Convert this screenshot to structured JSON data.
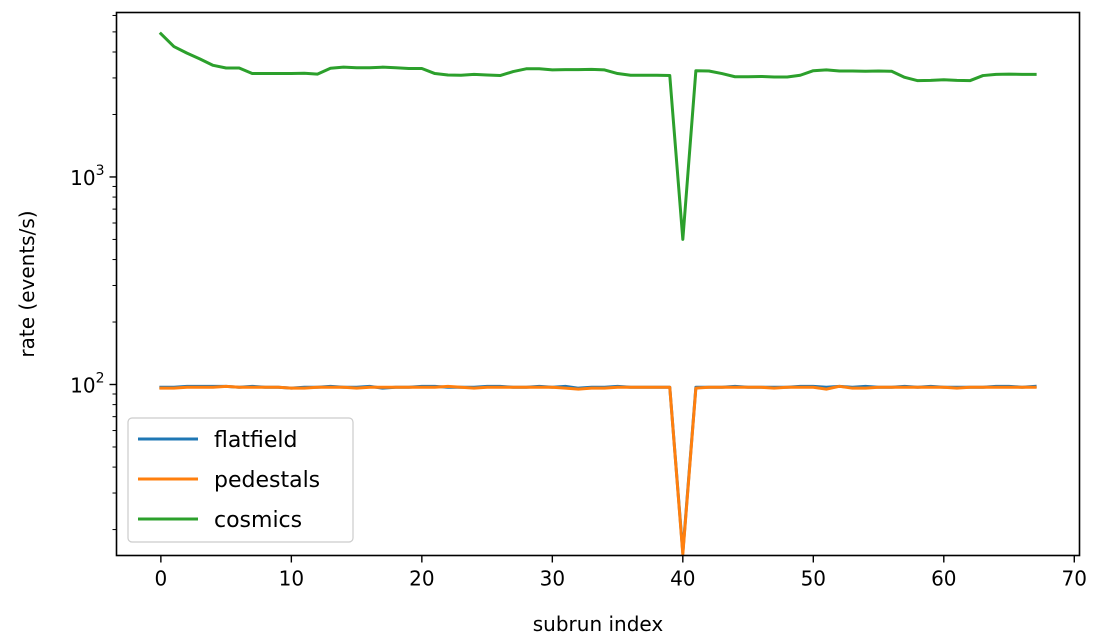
{
  "chart_data": {
    "type": "line",
    "title": "",
    "xlabel": "subrun index",
    "ylabel": "rate (events/s)",
    "xlim": [
      -3.4,
      70.4
    ],
    "ylim": [
      15.0,
      6200
    ],
    "yscale": "log",
    "grid": false,
    "legend_position": "lower-left",
    "x_ticks": [
      0,
      10,
      20,
      30,
      40,
      50,
      60,
      70
    ],
    "x_tick_labels": [
      "0",
      "10",
      "20",
      "30",
      "40",
      "50",
      "60",
      "70"
    ],
    "y_major_ticks": [
      {
        "value": 100,
        "base": "10",
        "exp": "2"
      },
      {
        "value": 1000,
        "base": "10",
        "exp": "3"
      }
    ],
    "series": [
      {
        "name": "flatfield",
        "color": "#1f77b4",
        "values": [
          97,
          97,
          98,
          98,
          98,
          98,
          97,
          98,
          97,
          97,
          96,
          97,
          97,
          98,
          97,
          97,
          98,
          96,
          97,
          97,
          98,
          98,
          97,
          97,
          97,
          98,
          98,
          97,
          97,
          98,
          97,
          98,
          96,
          97,
          97,
          98,
          97,
          97,
          97,
          97,
          15.5,
          97,
          97,
          97,
          98,
          97,
          97,
          97,
          97,
          98,
          98,
          97,
          98,
          97,
          98,
          97,
          97,
          98,
          97,
          98,
          97,
          97,
          97,
          97,
          98,
          98,
          97,
          98
        ]
      },
      {
        "name": "pedestals",
        "color": "#ff7f0e",
        "values": [
          96,
          96,
          97,
          97,
          97,
          98,
          97,
          97,
          97,
          97,
          96,
          96,
          97,
          97,
          97,
          96,
          97,
          97,
          97,
          97,
          97,
          97,
          98,
          97,
          96,
          97,
          97,
          97,
          97,
          97,
          97,
          96,
          95,
          96,
          96,
          97,
          97,
          97,
          97,
          97,
          15.2,
          96,
          97,
          97,
          97,
          97,
          97,
          96,
          97,
          97,
          97,
          95,
          98,
          96,
          96,
          97,
          97,
          97,
          97,
          97,
          97,
          96,
          97,
          97,
          97,
          97,
          97,
          97
        ]
      },
      {
        "name": "cosmics",
        "color": "#2ca02c",
        "values": [
          4900,
          4250,
          3950,
          3700,
          3450,
          3350,
          3350,
          3150,
          3150,
          3150,
          3150,
          3160,
          3130,
          3340,
          3380,
          3360,
          3360,
          3380,
          3360,
          3330,
          3330,
          3150,
          3100,
          3090,
          3120,
          3100,
          3080,
          3220,
          3320,
          3320,
          3280,
          3290,
          3290,
          3300,
          3280,
          3150,
          3090,
          3090,
          3090,
          3080,
          500,
          3250,
          3240,
          3150,
          3040,
          3040,
          3050,
          3030,
          3030,
          3090,
          3250,
          3280,
          3240,
          3240,
          3230,
          3240,
          3230,
          3020,
          2910,
          2920,
          2940,
          2920,
          2910,
          3080,
          3120,
          3130,
          3120,
          3120
        ]
      }
    ]
  }
}
